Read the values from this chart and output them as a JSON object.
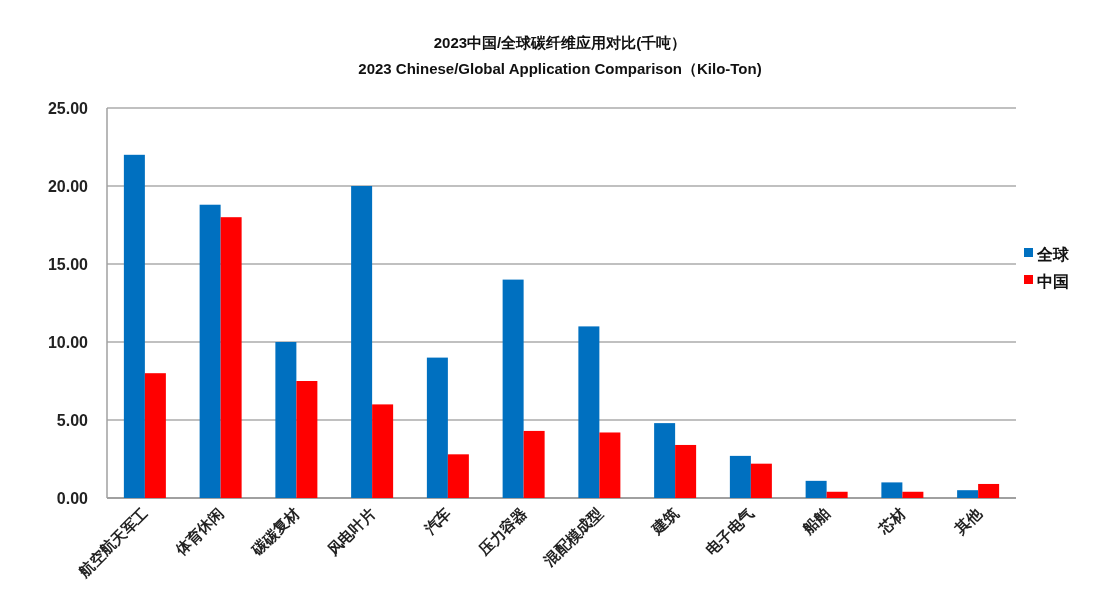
{
  "chart_data": {
    "type": "bar",
    "title": "2023中国/全球碳纤维应用对比(千吨）",
    "subtitle": "2023 Chinese/Global Application Comparison（Kilo-Ton)",
    "categories": [
      "航空航天军工",
      "体育休闲",
      "碳碳复材",
      "风电叶片",
      "汽车",
      "压力容器",
      "混配模成型",
      "建筑",
      "电子电气",
      "船舶",
      "芯材",
      "其他"
    ],
    "series": [
      {
        "name": "全球",
        "color": "#0070c0",
        "values": [
          22.0,
          18.8,
          10.0,
          20.0,
          9.0,
          14.0,
          11.0,
          4.8,
          2.7,
          1.1,
          1.0,
          0.5
        ]
      },
      {
        "name": "中国",
        "color": "#ff0000",
        "values": [
          8.0,
          18.0,
          7.5,
          6.0,
          2.8,
          4.3,
          4.2,
          3.4,
          2.2,
          0.4,
          0.4,
          0.9
        ]
      }
    ],
    "ylim": [
      0,
      25
    ],
    "yticks": [
      {
        "value": 0,
        "label": "0.00"
      },
      {
        "value": 5,
        "label": "5.00"
      },
      {
        "value": 10,
        "label": "10.00"
      },
      {
        "value": 15,
        "label": "15.00"
      },
      {
        "value": 20,
        "label": "20.00"
      },
      {
        "value": 25,
        "label": "25.00"
      }
    ],
    "grid": "y",
    "legend": "right"
  }
}
